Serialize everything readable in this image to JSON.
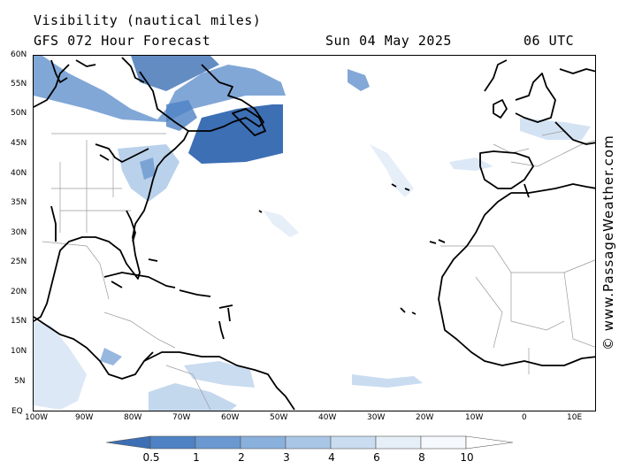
{
  "header": {
    "title": "Visibility (nautical miles)",
    "model": "GFS 072 Hour Forecast",
    "date": "Sun 04 May 2025",
    "time": "06 UTC"
  },
  "axes": {
    "lon_labels": [
      "100W",
      "90W",
      "80W",
      "70W",
      "60W",
      "50W",
      "40W",
      "30W",
      "20W",
      "10W",
      "0",
      "10E"
    ],
    "lat_labels": [
      "EQ",
      "5N",
      "10N",
      "15N",
      "20N",
      "25N",
      "30N",
      "35N",
      "40N",
      "45N",
      "50N",
      "55N",
      "60N"
    ]
  },
  "colorbar": {
    "labels": [
      "0.5",
      "1",
      "2",
      "3",
      "4",
      "6",
      "8",
      "10"
    ],
    "colors": [
      "#3c6fb4",
      "#4e82c4",
      "#6b98d0",
      "#8ab0dc",
      "#a9c6e6",
      "#c9dcf0",
      "#e6eef8",
      "#ffffff"
    ]
  },
  "copyright": "© www.PassageWeather.com",
  "colors": {
    "fog_dark": "#3c6fb4",
    "fog_mid": "#6b98d0",
    "fog_light": "#a9c6e6",
    "fog_faint": "#dce8f5",
    "coast": "#000000",
    "border": "#9a9a9a"
  }
}
